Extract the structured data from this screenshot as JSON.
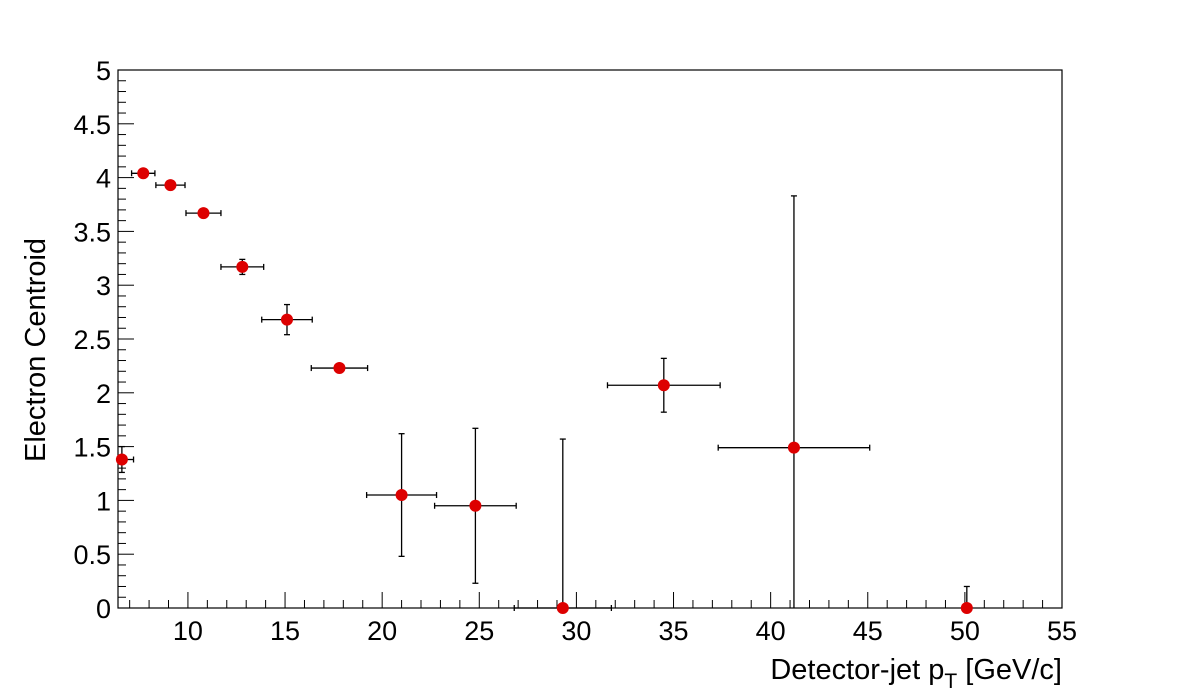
{
  "chart_data": {
    "type": "scatter",
    "xlabel": "Detector-jet p",
    "xlabel_subscript": "T",
    "xlabel_suffix": " [GeV/c]",
    "ylabel": "Electron Centroid",
    "xlim": [
      6.4,
      55
    ],
    "ylim": [
      0,
      5
    ],
    "x_tick_labels": [
      "10",
      "15",
      "20",
      "25",
      "30",
      "35",
      "40",
      "45",
      "50",
      "55"
    ],
    "y_tick_labels": [
      "0",
      "0.5",
      "1",
      "1.5",
      "2",
      "2.5",
      "3",
      "3.5",
      "4",
      "4.5",
      "5"
    ],
    "marker_color": "#dd0000",
    "points": [
      {
        "x": 6.6,
        "y": 1.38,
        "xerr": 0.6,
        "yerr": 0.12
      },
      {
        "x": 7.7,
        "y": 4.04,
        "xerr": 0.6,
        "yerr": 0.02
      },
      {
        "x": 9.1,
        "y": 3.93,
        "xerr": 0.75,
        "yerr": 0.03
      },
      {
        "x": 10.8,
        "y": 3.67,
        "xerr": 0.9,
        "yerr": 0.03
      },
      {
        "x": 12.8,
        "y": 3.17,
        "xerr": 1.1,
        "yerr": 0.07
      },
      {
        "x": 15.1,
        "y": 2.68,
        "xerr": 1.3,
        "yerr": 0.14
      },
      {
        "x": 17.8,
        "y": 2.23,
        "xerr": 1.45,
        "yerr": 0.02
      },
      {
        "x": 21.0,
        "y": 1.05,
        "xerr": 1.8,
        "yerr": 0.57
      },
      {
        "x": 24.8,
        "y": 0.95,
        "xerr": 2.1,
        "yerr": 0.72
      },
      {
        "x": 29.3,
        "y": 0.0,
        "xerr": 2.5,
        "yerr_up": 1.57,
        "yerr_down": 0
      },
      {
        "x": 34.5,
        "y": 2.07,
        "xerr": 2.9,
        "yerr": 0.25
      },
      {
        "x": 41.2,
        "y": 1.49,
        "xerr": 3.9,
        "yerr_up": 2.34,
        "yerr_down": 1.49
      },
      {
        "x": 50.1,
        "y": 0.0,
        "xerr": 0,
        "yerr_up": 0.2,
        "yerr_down": 0
      }
    ]
  }
}
